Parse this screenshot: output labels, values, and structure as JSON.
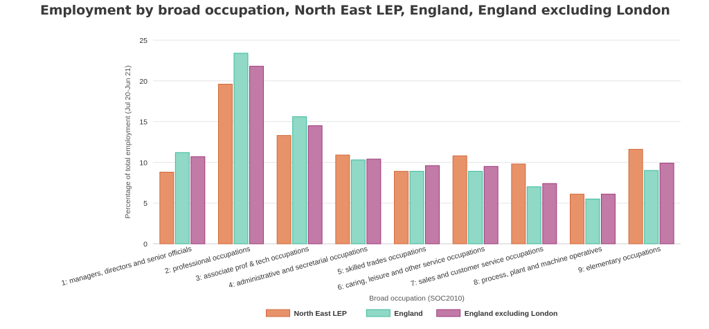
{
  "title": "Employment by broad occupation, North East LEP, England, England excluding London",
  "colors": {
    "north_east_lep": "#e8926a",
    "england": "#8fd9c6",
    "england_excl_london": "#c27aa7",
    "north_east_lep_stroke": "#d2693c",
    "england_stroke": "#3cba9a",
    "england_excl_london_stroke": "#9e3b7a",
    "grid": "#e6e6e6"
  },
  "chart_data": {
    "type": "bar",
    "title": "Employment by broad occupation, North East LEP, England, England excluding London",
    "xlabel": "Broad occupation (SOC2010)",
    "ylabel": "Percentage of total employment (Jul 20-Jun 21)",
    "ylim": [
      0,
      25
    ],
    "yticks": [
      0,
      5,
      10,
      15,
      20,
      25
    ],
    "grid": true,
    "legend_position": "bottom-center",
    "categories": [
      "1: managers, directors and senior officials",
      "2: professional occupations",
      "3: associate prof & tech occupations",
      "4: administrative and secretarial occupations",
      "5: skilled trades occupations",
      "6: caring, leisure and other service occupations",
      "7: sales and customer service occupations",
      "8: process, plant and machine operatives",
      "9: elementary occupations"
    ],
    "series": [
      {
        "name": "North East LEP",
        "values": [
          8.8,
          19.6,
          13.3,
          10.9,
          8.9,
          10.8,
          9.8,
          6.1,
          11.6
        ]
      },
      {
        "name": "England",
        "values": [
          11.2,
          23.4,
          15.6,
          10.3,
          8.9,
          8.9,
          7.0,
          5.5,
          9.0
        ]
      },
      {
        "name": "England excluding London",
        "values": [
          10.7,
          21.8,
          14.5,
          10.4,
          9.6,
          9.5,
          7.4,
          6.1,
          9.9
        ]
      }
    ]
  }
}
